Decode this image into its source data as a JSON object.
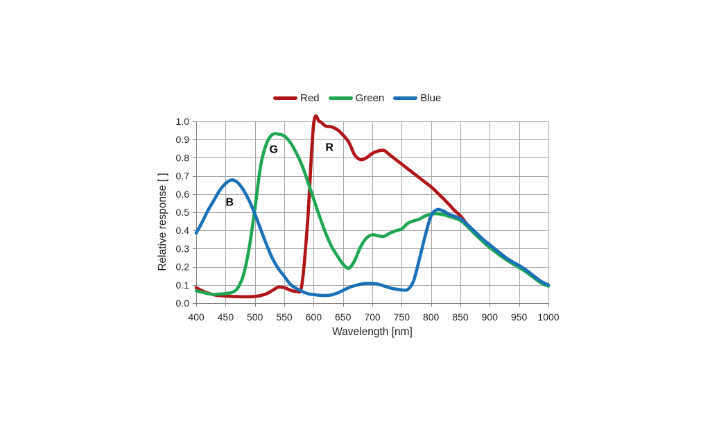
{
  "legend": {
    "items": [
      {
        "label": "Red",
        "color": "#AF1417"
      },
      {
        "label": "Green",
        "color": "#1FA653"
      },
      {
        "label": "Blue",
        "color": "#1B71B8"
      }
    ]
  },
  "chart_data": {
    "type": "line",
    "title": "",
    "xlabel": "Wavelength [nm]",
    "ylabel": "Relative response [ ]",
    "xlim": [
      400,
      1000
    ],
    "ylim": [
      0.0,
      1.0
    ],
    "grid": true,
    "legend_position": "top-center",
    "colors": {
      "grid": "#A6A6A6",
      "axis": "#7F7F7F",
      "tick_text": "#262626",
      "annotation_text": "#000000"
    },
    "x_ticks": [
      400,
      450,
      500,
      550,
      600,
      650,
      700,
      750,
      800,
      850,
      900,
      950,
      1000
    ],
    "x_tick_labels": [
      "400",
      "450",
      "500",
      "550",
      "600",
      "650",
      "700",
      "750",
      "800",
      "850",
      "900",
      "950",
      "1000"
    ],
    "y_ticks": [
      0.0,
      0.1,
      0.2,
      0.3,
      0.4,
      0.5,
      0.6,
      0.7,
      0.8,
      0.9,
      1.0
    ],
    "y_tick_labels": [
      "0.0",
      "0.1",
      "0.2",
      "0.3",
      "0.4",
      "0.5",
      "0.6",
      "0.7",
      "0.8",
      "0.9",
      "1.0"
    ],
    "x": [
      400,
      410,
      420,
      430,
      440,
      450,
      460,
      470,
      480,
      490,
      500,
      510,
      520,
      530,
      540,
      550,
      560,
      570,
      580,
      590,
      600,
      610,
      620,
      630,
      640,
      650,
      660,
      670,
      680,
      690,
      700,
      710,
      720,
      730,
      740,
      750,
      760,
      770,
      780,
      790,
      800,
      810,
      820,
      830,
      840,
      850,
      860,
      870,
      880,
      890,
      900,
      910,
      920,
      930,
      940,
      950,
      960,
      970,
      980,
      990,
      1000
    ],
    "series": [
      {
        "name": "Red",
        "color": "#AF1417",
        "values": [
          0.085,
          0.068,
          0.055,
          0.046,
          0.041,
          0.039,
          0.037,
          0.036,
          0.035,
          0.035,
          0.037,
          0.042,
          0.052,
          0.07,
          0.088,
          0.085,
          0.072,
          0.066,
          0.1,
          0.46,
          0.985,
          1.0,
          0.975,
          0.97,
          0.955,
          0.925,
          0.885,
          0.815,
          0.79,
          0.8,
          0.824,
          0.837,
          0.84,
          0.815,
          0.79,
          0.765,
          0.74,
          0.715,
          0.69,
          0.665,
          0.64,
          0.61,
          0.578,
          0.545,
          0.51,
          0.48,
          0.44,
          0.406,
          0.375,
          0.346,
          0.319,
          0.293,
          0.267,
          0.243,
          0.223,
          0.205,
          0.185,
          0.16,
          0.135,
          0.113,
          0.098
        ]
      },
      {
        "name": "Green",
        "color": "#1FA653",
        "values": [
          0.068,
          0.06,
          0.052,
          0.048,
          0.05,
          0.053,
          0.058,
          0.08,
          0.15,
          0.3,
          0.52,
          0.76,
          0.88,
          0.928,
          0.93,
          0.92,
          0.885,
          0.83,
          0.76,
          0.67,
          0.573,
          0.478,
          0.39,
          0.315,
          0.262,
          0.215,
          0.192,
          0.235,
          0.31,
          0.358,
          0.376,
          0.37,
          0.368,
          0.385,
          0.398,
          0.408,
          0.438,
          0.452,
          0.462,
          0.48,
          0.49,
          0.492,
          0.487,
          0.478,
          0.468,
          0.455,
          0.428,
          0.395,
          0.364,
          0.334,
          0.306,
          0.281,
          0.257,
          0.235,
          0.215,
          0.196,
          0.176,
          0.152,
          0.128,
          0.106,
          0.094
        ]
      },
      {
        "name": "Blue",
        "color": "#1B71B8",
        "values": [
          0.385,
          0.445,
          0.51,
          0.565,
          0.62,
          0.658,
          0.678,
          0.665,
          0.625,
          0.565,
          0.49,
          0.405,
          0.32,
          0.245,
          0.19,
          0.148,
          0.105,
          0.082,
          0.065,
          0.052,
          0.047,
          0.043,
          0.042,
          0.045,
          0.055,
          0.07,
          0.085,
          0.096,
          0.104,
          0.108,
          0.108,
          0.104,
          0.094,
          0.084,
          0.077,
          0.073,
          0.075,
          0.12,
          0.24,
          0.37,
          0.48,
          0.514,
          0.508,
          0.49,
          0.478,
          0.465,
          0.438,
          0.408,
          0.377,
          0.347,
          0.321,
          0.295,
          0.269,
          0.245,
          0.225,
          0.207,
          0.187,
          0.162,
          0.137,
          0.115,
          0.1
        ]
      }
    ],
    "annotations": [
      {
        "text": "B",
        "x": 457,
        "y": 0.56
      },
      {
        "text": "G",
        "x": 532,
        "y": 0.85
      },
      {
        "text": "R",
        "x": 627,
        "y": 0.86
      }
    ]
  }
}
